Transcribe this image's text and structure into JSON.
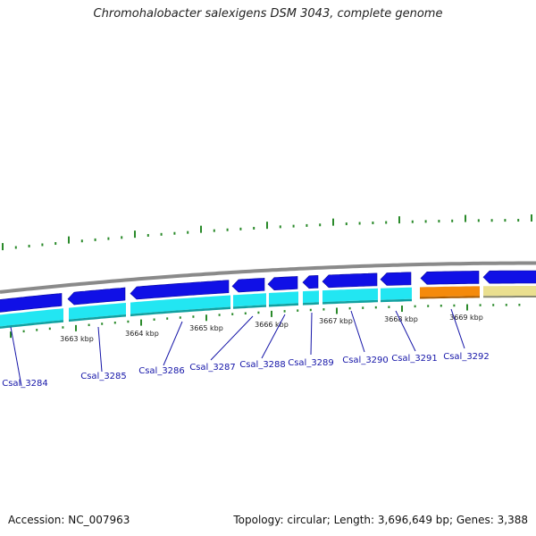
{
  "title": "Chromohalobacter salexigens DSM 3043, complete genome",
  "footer": {
    "accession": "Accession: NC_007963",
    "summary": "Topology: circular; Length: 3,696,649 bp; Genes: 3,388"
  },
  "colors": {
    "backbone": "#8a8a8a",
    "cds_strand": "#1010e6",
    "gene_strand": "#22e6f2",
    "gene_strand_edge": "#12a0a0",
    "highlight_gene": "#f58a0b",
    "pale_gene": "#eadf8f",
    "tick": "#2a8a2a",
    "label_line": "#1515a8"
  },
  "kbp_ticks": [
    {
      "label": "3663 kbp"
    },
    {
      "label": "3664 kbp"
    },
    {
      "label": "3665 kbp"
    },
    {
      "label": "3666 kbp"
    },
    {
      "label": "3667 kbp"
    },
    {
      "label": "3668 kbp"
    },
    {
      "label": "3669 kbp"
    }
  ],
  "genes": [
    {
      "label": "Csal_3284"
    },
    {
      "label": "Csal_3285"
    },
    {
      "label": "Csal_3286"
    },
    {
      "label": "Csal_3287"
    },
    {
      "label": "Csal_3288"
    },
    {
      "label": "Csal_3289"
    },
    {
      "label": "Csal_3290"
    },
    {
      "label": "Csal_3291"
    },
    {
      "label": "Csal_3292"
    }
  ]
}
